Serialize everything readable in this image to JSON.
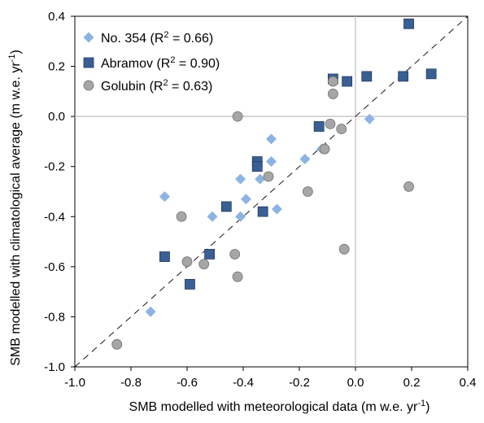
{
  "chart_data": {
    "type": "scatter",
    "xlabel": {
      "main": "SMB modelled with meteorological data (m w.e. yr",
      "sup": "-1",
      "close": ")"
    },
    "ylabel": {
      "main": "SMB modelled with climatological average  (m w.e. yr",
      "sup": "-1",
      "close": ")"
    },
    "xlim": [
      -1.0,
      0.4
    ],
    "ylim": [
      -1.0,
      0.4
    ],
    "xticks": [
      -1.0,
      -0.8,
      -0.6,
      -0.4,
      -0.2,
      0.0,
      0.2,
      0.4
    ],
    "yticks": [
      -1.0,
      -0.8,
      -0.6,
      -0.4,
      -0.2,
      0.0,
      0.2,
      0.4
    ],
    "xtick_labels": [
      "-1.0",
      "-0.8",
      "-0.6",
      "-0.4",
      "-0.2",
      "0.0",
      "0.2",
      "0.4"
    ],
    "ytick_labels": [
      "-1.0",
      "-0.8",
      "-0.6",
      "-0.4",
      "-0.2",
      "0.0",
      "0.2",
      "0.4"
    ],
    "reference_lines": {
      "one_to_one": "dashed",
      "zero_axes": true
    },
    "grid": false,
    "legend_position": "top-left",
    "series": [
      {
        "name": "No. 354 (R² = 0.66)",
        "legend": {
          "main": "No. 354 (R",
          "sup": "2",
          "rest": " = 0.66)"
        },
        "marker": "diamond",
        "color": "#8db3e2",
        "x": [
          0.05,
          -0.12,
          -0.18,
          -0.3,
          -0.3,
          -0.34,
          -0.41,
          -0.39,
          -0.41,
          -0.28,
          -0.51,
          -0.68,
          -0.73
        ],
        "y": [
          -0.01,
          -0.13,
          -0.17,
          -0.09,
          -0.18,
          -0.25,
          -0.25,
          -0.33,
          -0.4,
          -0.37,
          -0.4,
          -0.32,
          -0.78
        ]
      },
      {
        "name": "Abramov (R² = 0.90)",
        "legend": {
          "main": "Abramov (R",
          "sup": "2",
          "rest": " = 0.90)"
        },
        "marker": "square",
        "color": "#3a5f94",
        "x": [
          0.19,
          0.27,
          0.17,
          0.04,
          -0.03,
          -0.08,
          -0.13,
          -0.35,
          -0.35,
          -0.33,
          -0.46,
          -0.52,
          -0.59,
          -0.68
        ],
        "y": [
          0.37,
          0.17,
          0.16,
          0.16,
          0.14,
          0.15,
          -0.04,
          -0.18,
          -0.2,
          -0.38,
          -0.36,
          -0.55,
          -0.67,
          -0.56
        ]
      },
      {
        "name": "Golubin (R² = 0.63)",
        "legend": {
          "main": "Golubin (R",
          "sup": "2",
          "rest": " = 0.63)"
        },
        "marker": "circle",
        "color": "#a6a6a6",
        "x": [
          -0.42,
          -0.08,
          -0.08,
          -0.09,
          -0.05,
          -0.11,
          -0.31,
          -0.17,
          0.19,
          -0.04,
          -0.43,
          -0.42,
          -0.54,
          -0.6,
          -0.62,
          -0.85
        ],
        "y": [
          0.0,
          0.14,
          0.09,
          -0.03,
          -0.05,
          -0.13,
          -0.24,
          -0.3,
          -0.28,
          -0.53,
          -0.55,
          -0.64,
          -0.59,
          -0.58,
          -0.4,
          -0.91
        ]
      }
    ]
  }
}
